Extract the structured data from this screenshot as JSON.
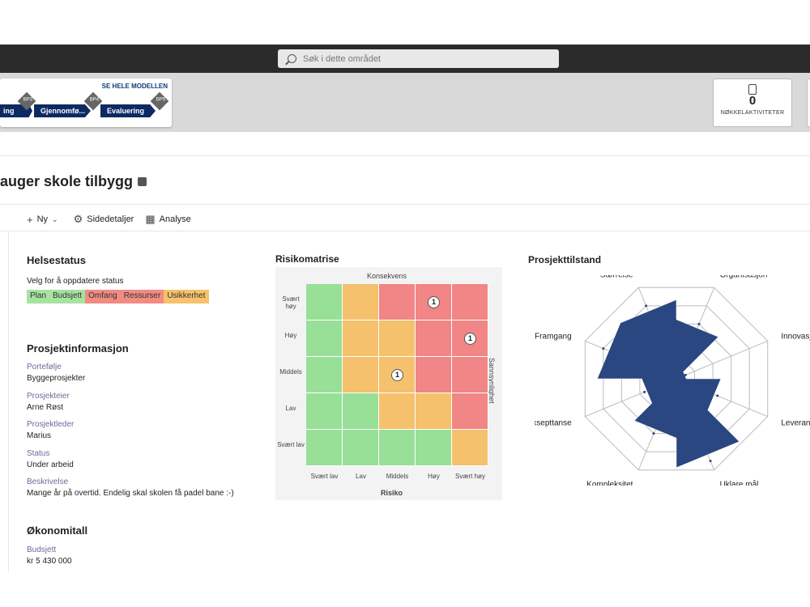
{
  "search": {
    "placeholder": "Søk i dette området"
  },
  "phases": {
    "see_all": "SE HELE MODELLEN",
    "items": [
      {
        "label": "ing",
        "bp": "BP3"
      },
      {
        "label": "Gjennomfø...",
        "bp": "BP4"
      },
      {
        "label": "Evaluering",
        "bp": "BP5"
      }
    ]
  },
  "key_activities": {
    "value": "0",
    "label": "NØKKELAKTIVITETER"
  },
  "page": {
    "title": "auger skole tilbygg"
  },
  "commands": {
    "new": "Ny",
    "page_details": "Sidedetaljer",
    "analysis": "Analyse"
  },
  "health": {
    "heading": "Helsestatus",
    "hint": "Velg for å oppdatere status",
    "chips": [
      {
        "label": "Plan",
        "color": "#a6e3a1"
      },
      {
        "label": "Budsjett",
        "color": "#a6e3a1"
      },
      {
        "label": "Omfang",
        "color": "#f28b82"
      },
      {
        "label": "Ressurser",
        "color": "#f28b82"
      },
      {
        "label": "Usikkerhet",
        "color": "#f6c26b"
      }
    ]
  },
  "project_info": {
    "heading": "Prosjektinformasjon",
    "fields": [
      {
        "label": "Portefølje",
        "value": "Byggeprosjekter"
      },
      {
        "label": "Prosjekteier",
        "value": "Arne Røst"
      },
      {
        "label": "Prosjektleder",
        "value": "Marius"
      },
      {
        "label": "Status",
        "value": "Under arbeid"
      },
      {
        "label": "Beskrivelse",
        "value": "Mange år på overtid. Endelig skal skolen få padel bane :-)"
      }
    ]
  },
  "economy": {
    "heading": "Økonomitall",
    "budget_label": "Budsjett",
    "budget_value": "kr 5 430 000"
  },
  "risk_matrix": {
    "heading": "Risikomatrise",
    "top_label": "Konsekvens",
    "side_label": "Sannsynlighet",
    "bottom_label": "Risiko",
    "row_labels": [
      "Svært høy",
      "Høy",
      "Middels",
      "Lav",
      "Svært lav"
    ],
    "col_labels": [
      "Svært lav",
      "Lav",
      "Middels",
      "Høy",
      "Svært høy"
    ],
    "colors": {
      "green": "#98df98",
      "yellow": "#f5c16c",
      "red": "#f28585"
    },
    "grid": [
      [
        "green",
        "yellow",
        "red",
        "red",
        "red"
      ],
      [
        "green",
        "yellow",
        "yellow",
        "red",
        "red"
      ],
      [
        "green",
        "yellow",
        "yellow",
        "red",
        "red"
      ],
      [
        "green",
        "green",
        "yellow",
        "yellow",
        "red"
      ],
      [
        "green",
        "green",
        "green",
        "green",
        "yellow"
      ]
    ],
    "counts": [
      {
        "row": 0,
        "col": 3,
        "value": "1"
      },
      {
        "row": 1,
        "col": 4,
        "value": "1"
      },
      {
        "row": 2,
        "col": 2,
        "value": "1"
      }
    ]
  },
  "project_state": {
    "heading": "Prosjekttilstand",
    "color": "#2a4781",
    "axes": [
      "Størrelse",
      "Organisasjon",
      "Innovasjon",
      "Leverandør",
      "Uklare mål",
      "Kompleksitet",
      "Aksepttanse",
      "Framgang"
    ],
    "values": [
      0.8,
      0.6,
      0.1,
      0.45,
      0.9,
      0.6,
      0.35,
      0.8
    ],
    "max": 1
  }
}
